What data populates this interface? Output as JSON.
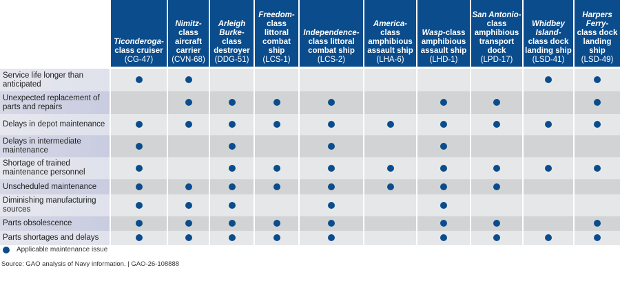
{
  "colors": {
    "header": "#0b4c8c",
    "dot": "#0b4c8c",
    "row_light": "#e6e7e8",
    "row_dark": "#d1d3d4"
  },
  "columns": [
    {
      "name": "Ticonderoga-",
      "cls": "class cruiser",
      "code": "(CG-47)"
    },
    {
      "name": "Nimitz-",
      "cls": "class aircraft carrier",
      "code": "(CVN-68)"
    },
    {
      "name": "Arleigh Burke-",
      "cls": "class destroyer",
      "code": "(DDG-51)"
    },
    {
      "name": "Freedom-",
      "cls": "class littoral combat ship",
      "code": "(LCS-1)"
    },
    {
      "name": "Independence-",
      "cls": "class littoral combat ship",
      "code": "(LCS-2)"
    },
    {
      "name": "America-",
      "cls": "class amphibious assault ship",
      "code": "(LHA-6)"
    },
    {
      "name": "Wasp",
      "cls": "-class amphibious assault ship",
      "code": "(LHD-1)"
    },
    {
      "name": "San Antonio-",
      "cls": "class amphibious transport dock",
      "code": "(LPD-17)"
    },
    {
      "name": "Whidbey Island-",
      "cls": "class dock landing ship",
      "code": "(LSD-41)"
    },
    {
      "name": "Harpers Ferry-",
      "cls": "class dock landing ship",
      "code": "(LSD-49)"
    }
  ],
  "rows": [
    {
      "label": "Service life longer than anticipated",
      "values": [
        1,
        1,
        0,
        0,
        0,
        0,
        0,
        0,
        1,
        1
      ]
    },
    {
      "label": "Unexpected replacement of parts and repairs",
      "values": [
        0,
        1,
        1,
        1,
        1,
        0,
        1,
        1,
        0,
        1
      ]
    },
    {
      "label": "Delays in depot maintenance",
      "values": [
        1,
        1,
        1,
        1,
        1,
        1,
        1,
        1,
        1,
        1
      ]
    },
    {
      "label": "Delays in intermediate maintenance",
      "values": [
        1,
        0,
        1,
        0,
        1,
        0,
        1,
        0,
        0,
        0
      ]
    },
    {
      "label": "Shortage of trained maintenance personnel",
      "values": [
        1,
        0,
        1,
        1,
        1,
        1,
        1,
        1,
        1,
        1
      ]
    },
    {
      "label": "Unscheduled maintenance",
      "values": [
        1,
        1,
        1,
        1,
        1,
        1,
        1,
        1,
        0,
        0
      ]
    },
    {
      "label": "Diminishing manufacturing sources",
      "values": [
        1,
        1,
        1,
        0,
        1,
        0,
        1,
        0,
        0,
        0
      ]
    },
    {
      "label": "Parts obsolescence",
      "values": [
        1,
        1,
        1,
        1,
        1,
        0,
        1,
        1,
        0,
        1
      ]
    },
    {
      "label": "Parts shortages and delays",
      "values": [
        1,
        1,
        1,
        1,
        1,
        0,
        1,
        1,
        1,
        1
      ]
    }
  ],
  "legend": {
    "label": "Applicable maintenance issue",
    "icon": "filled-circle"
  },
  "source": "Source: GAO analysis of Navy information.  |  GAO-26-108888"
}
